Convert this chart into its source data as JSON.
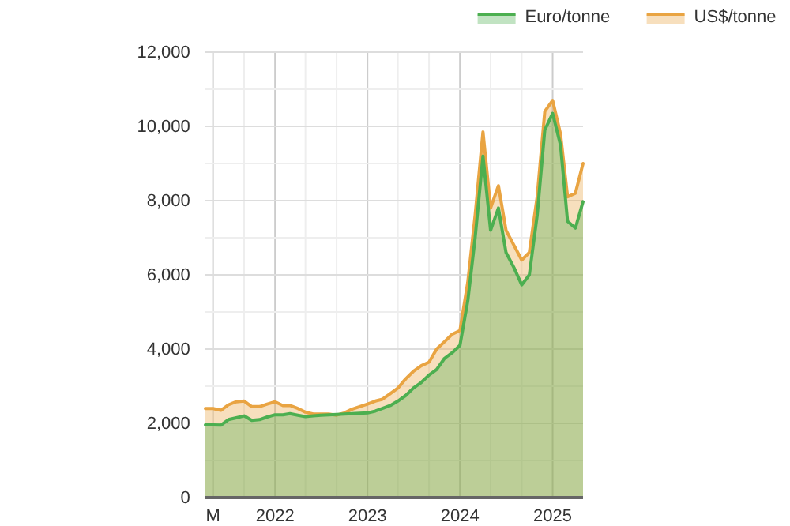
{
  "chart_data": {
    "type": "area",
    "x": [
      "2021-04",
      "2021-05",
      "2021-06",
      "2021-07",
      "2021-08",
      "2021-09",
      "2021-10",
      "2021-11",
      "2021-12",
      "2022-01",
      "2022-02",
      "2022-03",
      "2022-04",
      "2022-05",
      "2022-06",
      "2022-07",
      "2022-08",
      "2022-09",
      "2022-10",
      "2022-11",
      "2022-12",
      "2023-01",
      "2023-02",
      "2023-03",
      "2023-04",
      "2023-05",
      "2023-06",
      "2023-07",
      "2023-08",
      "2023-09",
      "2023-10",
      "2023-11",
      "2023-12",
      "2024-01",
      "2024-02",
      "2024-03",
      "2024-04",
      "2024-05",
      "2024-06",
      "2024-07",
      "2024-08",
      "2024-09",
      "2024-10",
      "2024-11",
      "2024-12",
      "2025-01",
      "2025-02",
      "2025-03",
      "2025-04",
      "2025-05"
    ],
    "series": [
      {
        "name": "US$/tonne",
        "color": "#e9a442",
        "values": [
          2400,
          2400,
          2350,
          2500,
          2580,
          2600,
          2450,
          2450,
          2520,
          2580,
          2480,
          2480,
          2400,
          2300,
          2250,
          2250,
          2250,
          2220,
          2280,
          2380,
          2450,
          2520,
          2600,
          2650,
          2800,
          2950,
          3200,
          3400,
          3550,
          3650,
          4000,
          4200,
          4400,
          4500,
          5800,
          7600,
          9850,
          7800,
          8400,
          7200,
          6800,
          6400,
          6600,
          8100,
          10400,
          10700,
          9800,
          8100,
          8200,
          9000
        ]
      },
      {
        "name": "Euro/tonne",
        "color": "#4caf50",
        "values": [
          1960,
          1960,
          1950,
          2100,
          2150,
          2200,
          2080,
          2100,
          2170,
          2230,
          2230,
          2260,
          2220,
          2180,
          2200,
          2220,
          2230,
          2240,
          2250,
          2260,
          2270,
          2280,
          2330,
          2400,
          2480,
          2600,
          2750,
          2950,
          3100,
          3300,
          3450,
          3750,
          3900,
          4100,
          5300,
          7000,
          9200,
          7200,
          7800,
          6600,
          6200,
          5730,
          6000,
          7600,
          9900,
          10350,
          9500,
          7440,
          7260,
          7970
        ]
      }
    ],
    "xlim": [
      "2021-04",
      "2025-05"
    ],
    "xticks": [
      {
        "value": "2021-05",
        "label": "M"
      },
      {
        "value": "2021-09",
        "label": null
      },
      {
        "value": "2022-01",
        "label": "2022"
      },
      {
        "value": "2022-05",
        "label": null
      },
      {
        "value": "2022-09",
        "label": null
      },
      {
        "value": "2023-01",
        "label": "2023"
      },
      {
        "value": "2023-05",
        "label": null
      },
      {
        "value": "2023-09",
        "label": null
      },
      {
        "value": "2024-01",
        "label": "2024"
      },
      {
        "value": "2024-05",
        "label": null
      },
      {
        "value": "2024-09",
        "label": null
      },
      {
        "value": "2025-01",
        "label": "2025"
      }
    ],
    "ylim": [
      0,
      12000
    ],
    "yticks": [
      {
        "value": 0,
        "label": "0"
      },
      {
        "value": 1000,
        "label": null
      },
      {
        "value": 2000,
        "label": "2,000"
      },
      {
        "value": 3000,
        "label": null
      },
      {
        "value": 4000,
        "label": "4,000"
      },
      {
        "value": 5000,
        "label": null
      },
      {
        "value": 6000,
        "label": "6,000"
      },
      {
        "value": 7000,
        "label": null
      },
      {
        "value": 8000,
        "label": "8,000"
      },
      {
        "value": 9000,
        "label": null
      },
      {
        "value": 10000,
        "label": "10,000"
      },
      {
        "value": 11000,
        "label": null
      },
      {
        "value": 12000,
        "label": "12,000"
      }
    ],
    "grid": true,
    "legend": "top right",
    "marker": "none",
    "line_style": "solid"
  }
}
